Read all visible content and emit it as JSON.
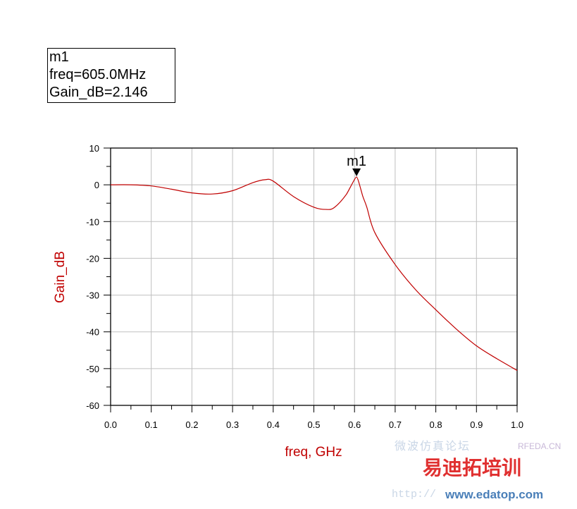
{
  "marker_readout": {
    "name": "m1",
    "line1": "freq=605.0MHz",
    "line2": "Gain_dB=2.146"
  },
  "watermark": {
    "cn_text": "微波仿真论坛",
    "brand": "易迪拓培训",
    "site": "RFEDA.CN",
    "url": "www.edatop.com",
    "url_prefix": "http://"
  },
  "chart_data": {
    "type": "line",
    "title": "",
    "xlabel": "freq, GHz",
    "ylabel": "Gain_dB",
    "xlim": [
      0.0,
      1.0
    ],
    "ylim": [
      -60,
      10
    ],
    "xticks": [
      "0.0",
      "0.1",
      "0.2",
      "0.3",
      "0.4",
      "0.5",
      "0.6",
      "0.7",
      "0.8",
      "0.9",
      "1.0"
    ],
    "yticks": [
      "10",
      "0",
      "-10",
      "-20",
      "-30",
      "-40",
      "-50",
      "-60"
    ],
    "grid": true,
    "colors": {
      "curve": "#c00000",
      "axis_label": "#c00000",
      "grid": "#c0c0c0"
    },
    "series": [
      {
        "x": [
          0,
          0.05,
          0.1,
          0.15,
          0.2,
          0.25,
          0.3,
          0.35,
          0.38,
          0.4,
          0.45,
          0.5,
          0.53,
          0.55,
          0.58,
          0.605,
          0.62,
          0.63,
          0.65,
          0.7,
          0.75,
          0.8,
          0.85,
          0.9,
          0.95,
          1.0
        ],
        "y": [
          0,
          0,
          -0.3,
          -1.2,
          -2.2,
          -2.5,
          -1.6,
          0.6,
          1.4,
          1.0,
          -3.2,
          -6.1,
          -6.7,
          -6.2,
          -2.6,
          2.146,
          -3,
          -6,
          -13,
          -21.7,
          -28.5,
          -34,
          -39.2,
          -43.8,
          -47.3,
          -50.5
        ]
      }
    ],
    "markers": [
      {
        "name": "m1",
        "x": 0.605,
        "y": 2.146
      }
    ]
  }
}
